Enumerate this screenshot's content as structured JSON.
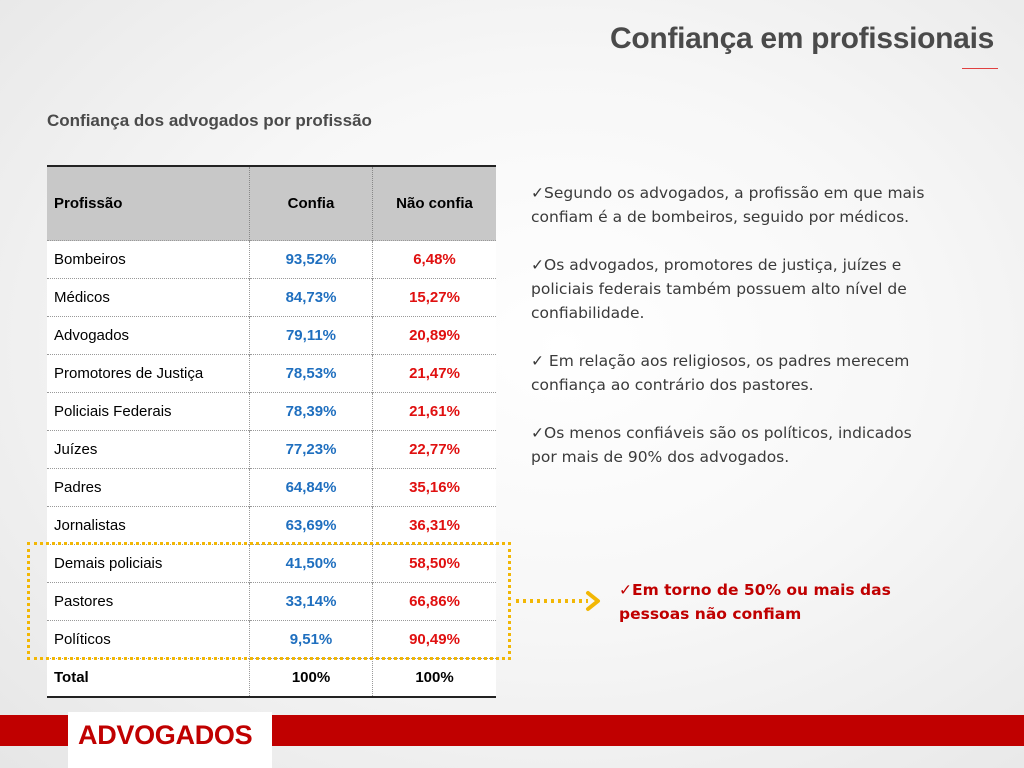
{
  "header": {
    "title": "Confiança em profissionais"
  },
  "subtitle": "Confiança dos advogados por profissão",
  "table": {
    "columns": [
      "Profissão",
      "Confia",
      "Não confia"
    ],
    "rows": [
      [
        "Bombeiros",
        "93,52%",
        "6,48%"
      ],
      [
        "Médicos",
        "84,73%",
        "15,27%"
      ],
      [
        "Advogados",
        "79,11%",
        "20,89%"
      ],
      [
        "Promotores de Justiça",
        "78,53%",
        "21,47%"
      ],
      [
        "Policiais Federais",
        "78,39%",
        "21,61%"
      ],
      [
        "Juízes",
        "77,23%",
        "22,77%"
      ],
      [
        "Padres",
        "64,84%",
        "35,16%"
      ],
      [
        "Jornalistas",
        "63,69%",
        "36,31%"
      ],
      [
        "Demais policiais",
        "41,50%",
        "58,50%"
      ],
      [
        "Pastores",
        "33,14%",
        "66,86%"
      ],
      [
        "Políticos",
        "9,51%",
        "90,49%"
      ]
    ],
    "total": [
      "Total",
      "100%",
      "100%"
    ]
  },
  "bullets": [
    "✓Segundo os  advogados, a profissão em que mais confiam é a de bombeiros, seguido por médicos.",
    "✓Os advogados, promotores de justiça, juízes e policiais federais também possuem alto nível de confiabilidade.",
    "✓ Em relação aos religiosos, os padres merecem confiança ao contrário dos pastores.",
    "✓Os menos confiáveis  são os políticos, indicados por mais de 90%  dos advogados."
  ],
  "callout": "✓Em torno de 50% ou mais das pessoas não confiam",
  "footer": {
    "label": "ADVOGADOS"
  },
  "colors": {
    "accent_red": "#c00000",
    "confia_blue": "#1f6fbf",
    "nao_confia_red": "#e01010",
    "highlight_yellow": "#f2b705",
    "header_gray": "#c8c8c8"
  }
}
